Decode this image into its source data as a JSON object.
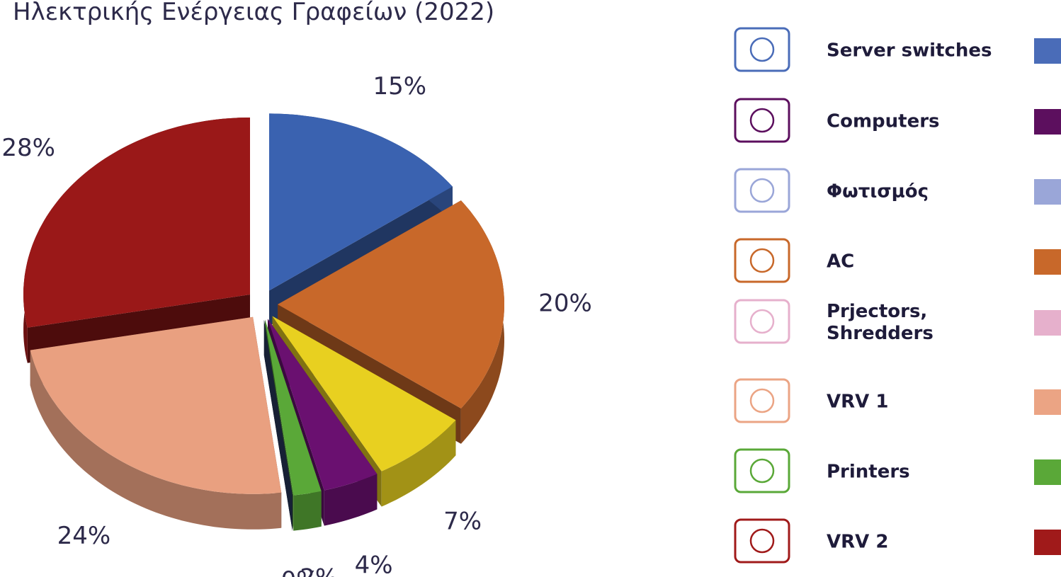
{
  "chart_data": {
    "type": "pie",
    "title": "Ηλεκτρικής Ενέργειας Γραφείων (2022)",
    "values": [
      15,
      20,
      7,
      4,
      2,
      0,
      24,
      28
    ],
    "value_labels": [
      "15%",
      "20%",
      "7%",
      "4%",
      "2%",
      "0%",
      "24%",
      "28%"
    ],
    "colors": [
      "#3a62b0",
      "#c8682a",
      "#e8d020",
      "#6a1070",
      "#5aa838",
      "#2a3a60",
      "#e9a080",
      "#9a1818"
    ],
    "legend": [
      {
        "name": "Server switches",
        "color": "#4a6cb8"
      },
      {
        "name": "Computers",
        "color": "#5c0f5e"
      },
      {
        "name": "Φωτισμός",
        "color": "#9aa6d8"
      },
      {
        "name": "AC",
        "color": "#c8682a"
      },
      {
        "name": "Prjectors,\nShredders",
        "color": "#e6b0cc"
      },
      {
        "name": "VRV 1",
        "color": "#eba484"
      },
      {
        "name": "Printers",
        "color": "#5aa838"
      },
      {
        "name": "VRV 2",
        "color": "#a01a1a"
      }
    ]
  }
}
